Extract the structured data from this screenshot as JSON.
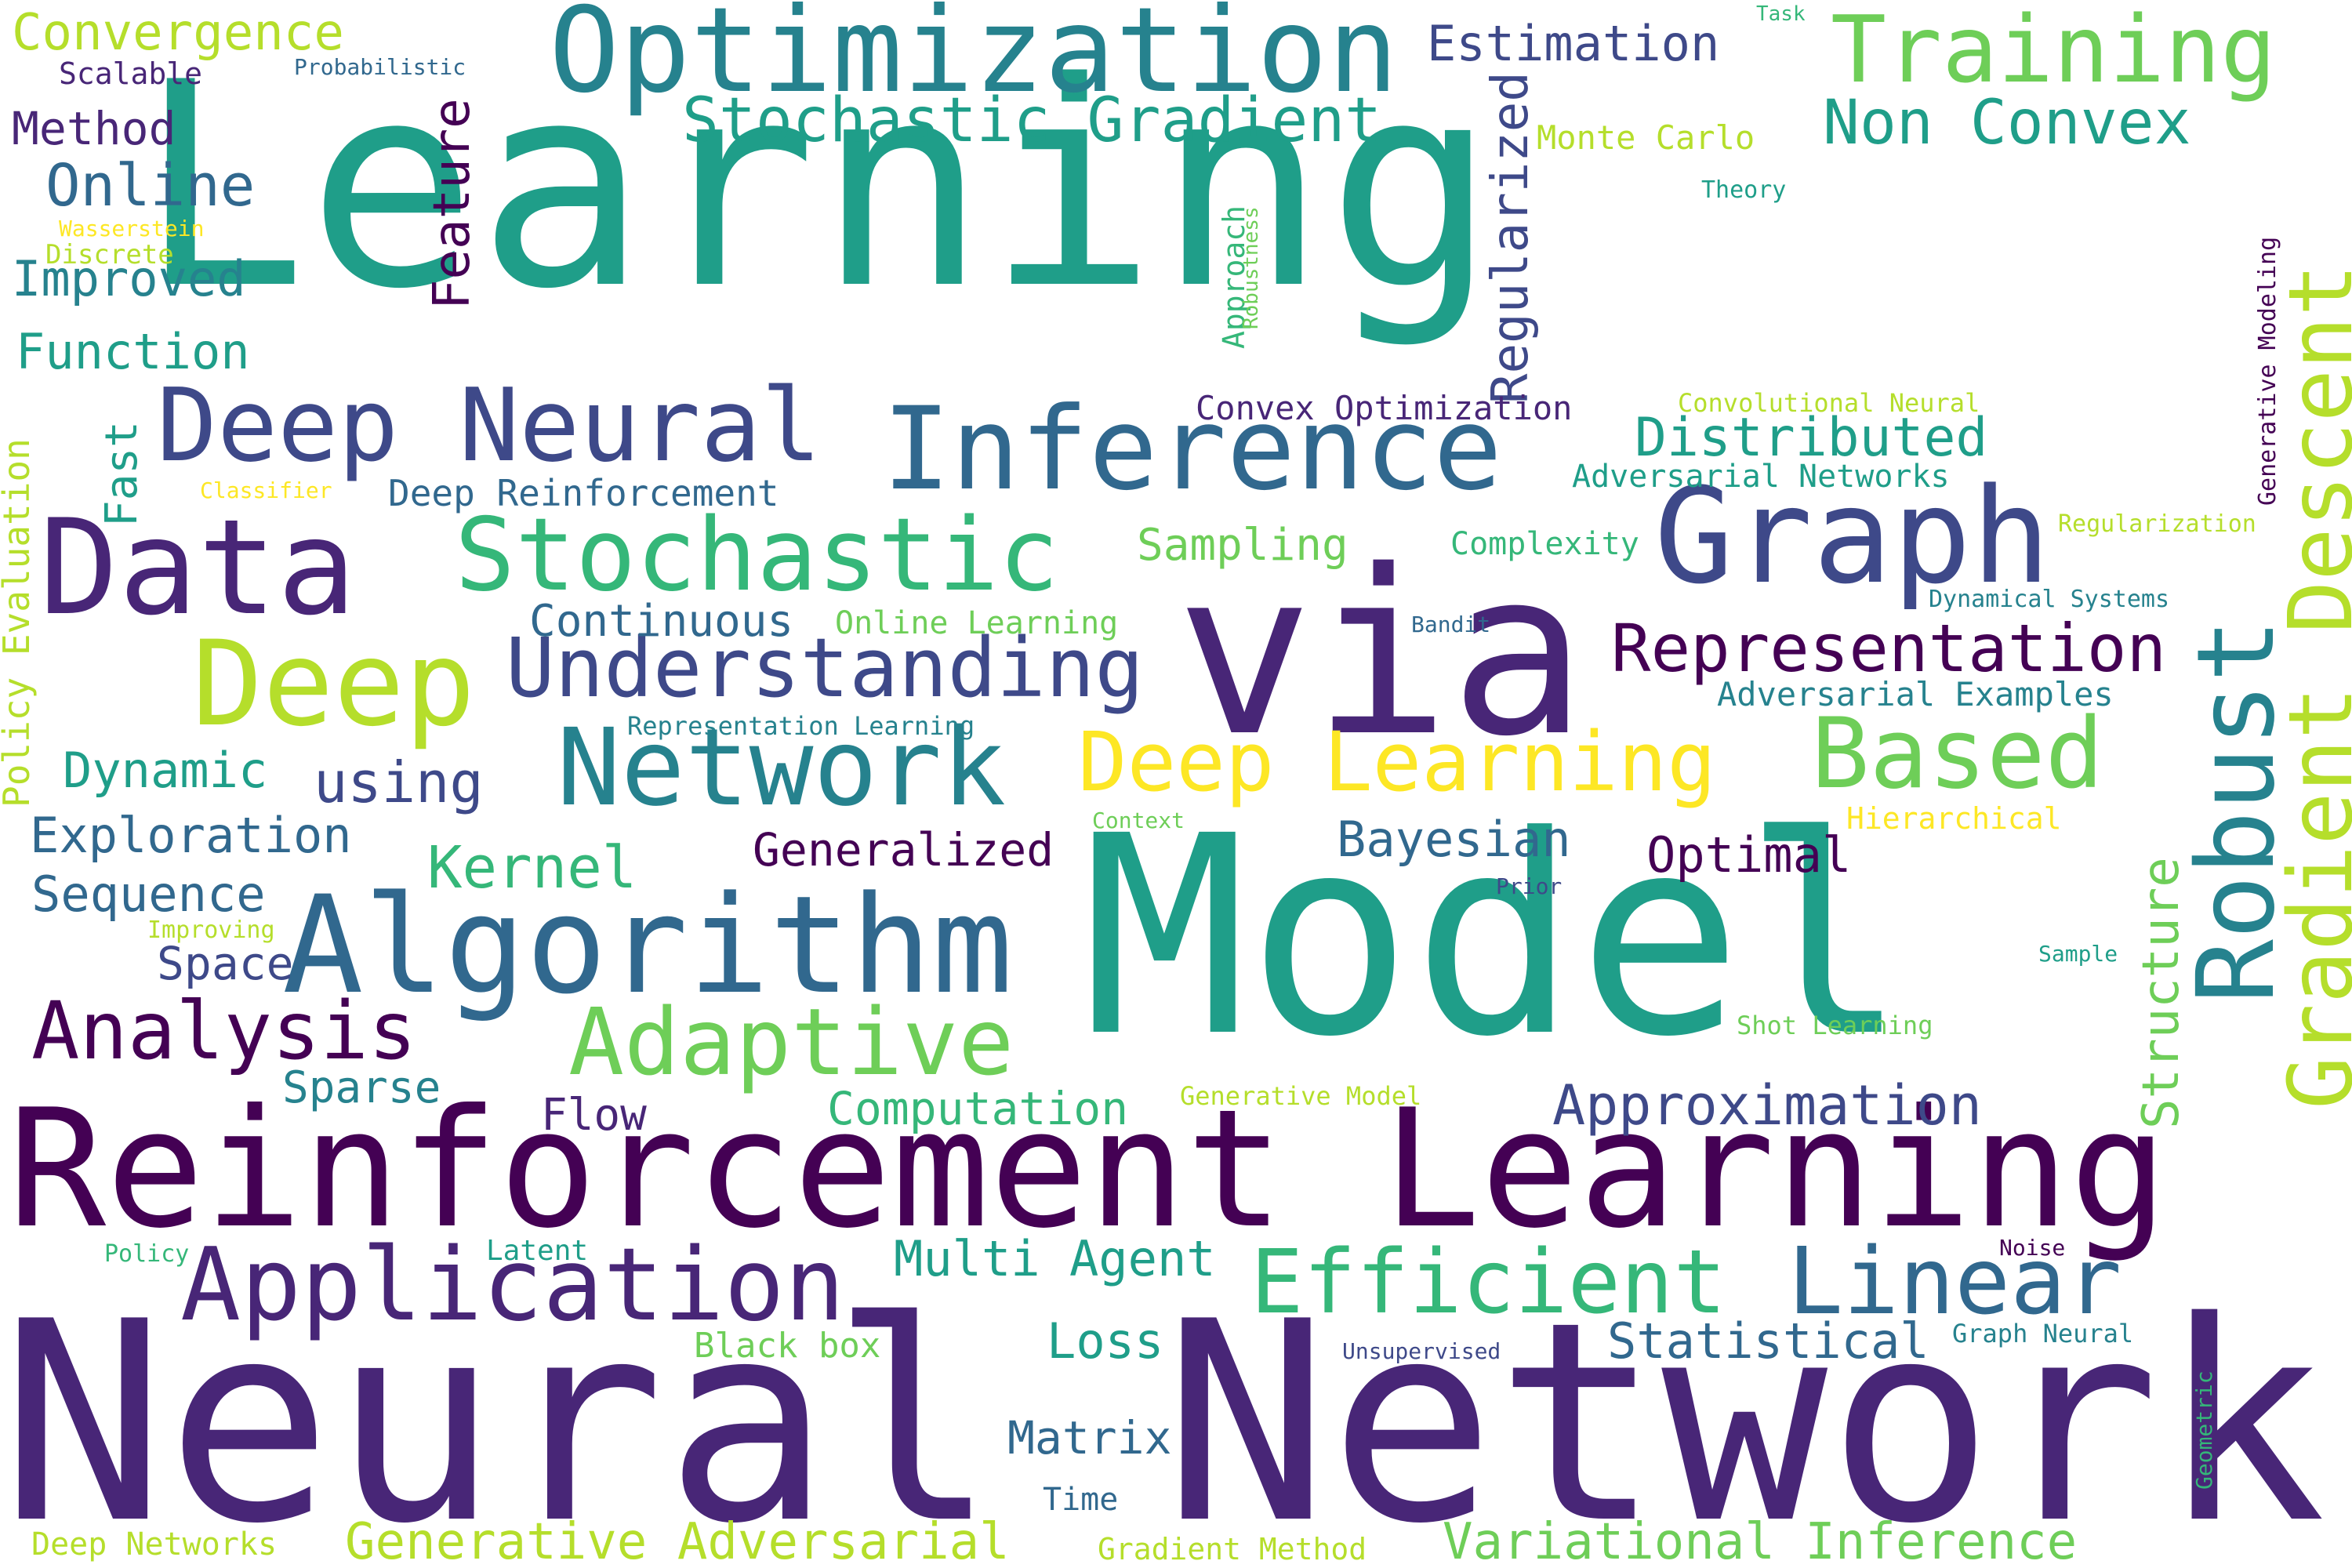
{
  "palette": {
    "dark_purple": "#440154",
    "purple": "#482677",
    "indigo": "#3e4989",
    "blue": "#31688e",
    "teal_blue": "#26828e",
    "teal": "#1f9e89",
    "green_teal": "#35b779",
    "green": "#6ece58",
    "lime": "#b5de2b",
    "yellow": "#fde725"
  },
  "words": [
    {
      "text": "Learning",
      "color": "#1f9e89"
    },
    {
      "text": "Neural Network",
      "color": "#482677"
    },
    {
      "text": "Model",
      "color": "#1f9e89"
    },
    {
      "text": "Reinforcement Learning",
      "color": "#440154"
    },
    {
      "text": "via",
      "color": "#482677"
    },
    {
      "text": "Optimization",
      "color": "#26828e"
    },
    {
      "text": "Algorithm",
      "color": "#31688e"
    },
    {
      "text": "Data",
      "color": "#482677"
    },
    {
      "text": "Graph",
      "color": "#3e4989"
    },
    {
      "text": "Deep",
      "color": "#b5de2b"
    },
    {
      "text": "Application",
      "color": "#482677"
    },
    {
      "text": "Inference",
      "color": "#31688e"
    },
    {
      "text": "Deep Neural",
      "color": "#3e4989"
    },
    {
      "text": "Stochastic",
      "color": "#35b779"
    },
    {
      "text": "Network",
      "color": "#26828e"
    },
    {
      "text": "Robust",
      "color": "#26828e"
    },
    {
      "text": "Gradient Descent",
      "color": "#b5de2b"
    },
    {
      "text": "Adaptive",
      "color": "#6ece58"
    },
    {
      "text": "Understanding",
      "color": "#3e4989"
    },
    {
      "text": "Deep Learning",
      "color": "#fde725"
    },
    {
      "text": "Based",
      "color": "#6ece58"
    },
    {
      "text": "Training",
      "color": "#6ece58"
    },
    {
      "text": "Representation",
      "color": "#440154"
    },
    {
      "text": "Efficient",
      "color": "#35b779"
    },
    {
      "text": "Linear",
      "color": "#31688e"
    },
    {
      "text": "Analysis",
      "color": "#440154"
    },
    {
      "text": "Stochastic Gradient",
      "color": "#1f9e89"
    },
    {
      "text": "Non Convex",
      "color": "#1f9e89"
    },
    {
      "text": "Approximation",
      "color": "#3e4989"
    },
    {
      "text": "Generative Adversarial",
      "color": "#b5de2b"
    },
    {
      "text": "Variational Inference",
      "color": "#6ece58"
    },
    {
      "text": "Online",
      "color": "#31688e"
    },
    {
      "text": "Structure",
      "color": "#6ece58"
    },
    {
      "text": "Regularized",
      "color": "#3e4989"
    },
    {
      "text": "Feature",
      "color": "#440154"
    },
    {
      "text": "Distributed",
      "color": "#1f9e89"
    },
    {
      "text": "Estimation",
      "color": "#3e4989"
    },
    {
      "text": "Exploration",
      "color": "#31688e"
    },
    {
      "text": "Multi Agent",
      "color": "#1f9e89"
    },
    {
      "text": "Statistical",
      "color": "#31688e"
    },
    {
      "text": "Dynamic",
      "color": "#1f9e89"
    },
    {
      "text": "Sequence",
      "color": "#31688e"
    },
    {
      "text": "using",
      "color": "#3e4989"
    },
    {
      "text": "Kernel",
      "color": "#35b779"
    },
    {
      "text": "Generalized",
      "color": "#440154"
    },
    {
      "text": "Bayesian",
      "color": "#31688e"
    },
    {
      "text": "Optimal",
      "color": "#440154"
    },
    {
      "text": "Matrix",
      "color": "#31688e"
    },
    {
      "text": "Computation",
      "color": "#35b779"
    },
    {
      "text": "Improved",
      "color": "#26828e"
    },
    {
      "text": "Function",
      "color": "#1f9e89"
    },
    {
      "text": "Method",
      "color": "#482677"
    },
    {
      "text": "Convergence",
      "color": "#b5de2b"
    },
    {
      "text": "Continuous",
      "color": "#31688e"
    },
    {
      "text": "Sampling",
      "color": "#6ece58"
    },
    {
      "text": "Loss",
      "color": "#1f9e89"
    },
    {
      "text": "Flow",
      "color": "#482677"
    },
    {
      "text": "Space",
      "color": "#3e4989"
    },
    {
      "text": "Sparse",
      "color": "#26828e"
    },
    {
      "text": "Fast",
      "color": "#1f9e89"
    },
    {
      "text": "Policy Evaluation",
      "color": "#b5de2b"
    },
    {
      "text": "Deep Reinforcement",
      "color": "#31688e"
    },
    {
      "text": "Convex Optimization",
      "color": "#482677"
    },
    {
      "text": "Monte Carlo",
      "color": "#b5de2b"
    },
    {
      "text": "Adversarial Networks",
      "color": "#1f9e89"
    },
    {
      "text": "Adversarial Examples",
      "color": "#26828e"
    },
    {
      "text": "Complexity",
      "color": "#35b779"
    },
    {
      "text": "Online Learning",
      "color": "#6ece58"
    },
    {
      "text": "Black box",
      "color": "#6ece58"
    },
    {
      "text": "Time",
      "color": "#31688e"
    },
    {
      "text": "Deep Networks",
      "color": "#b5de2b"
    },
    {
      "text": "Gradient Method",
      "color": "#b5de2b"
    },
    {
      "text": "Hierarchical",
      "color": "#fde725"
    },
    {
      "text": "Approach",
      "color": "#35b779"
    },
    {
      "text": "Representation Learning",
      "color": "#26828e"
    },
    {
      "text": "Convolutional Neural",
      "color": "#b5de2b"
    },
    {
      "text": "Regularization",
      "color": "#b5de2b"
    },
    {
      "text": "Dynamical Systems",
      "color": "#26828e"
    },
    {
      "text": "Generative Modeling",
      "color": "#440154"
    },
    {
      "text": "Graph Neural",
      "color": "#26828e"
    },
    {
      "text": "Generative Model",
      "color": "#b5de2b"
    },
    {
      "text": "Shot Learning",
      "color": "#6ece58"
    },
    {
      "text": "Latent",
      "color": "#1f9e89"
    },
    {
      "text": "Scalable",
      "color": "#482677"
    },
    {
      "text": "Discrete",
      "color": "#b5de2b"
    },
    {
      "text": "Probabilistic",
      "color": "#31688e"
    },
    {
      "text": "Wasserstein",
      "color": "#fde725"
    },
    {
      "text": "Robustness",
      "color": "#6ece58"
    },
    {
      "text": "Theory",
      "color": "#1f9e89"
    },
    {
      "text": "Classifier",
      "color": "#fde725"
    },
    {
      "text": "Bandit",
      "color": "#31688e"
    },
    {
      "text": "Context",
      "color": "#6ece58"
    },
    {
      "text": "Prior",
      "color": "#3e4989"
    },
    {
      "text": "Sample",
      "color": "#1f9e89"
    },
    {
      "text": "Improving",
      "color": "#b5de2b"
    },
    {
      "text": "Policy",
      "color": "#35b779"
    },
    {
      "text": "Noise",
      "color": "#440154"
    },
    {
      "text": "Unsupervised",
      "color": "#3e4989"
    },
    {
      "text": "Geometric",
      "color": "#35b779"
    },
    {
      "text": "Task",
      "color": "#35b779"
    }
  ]
}
